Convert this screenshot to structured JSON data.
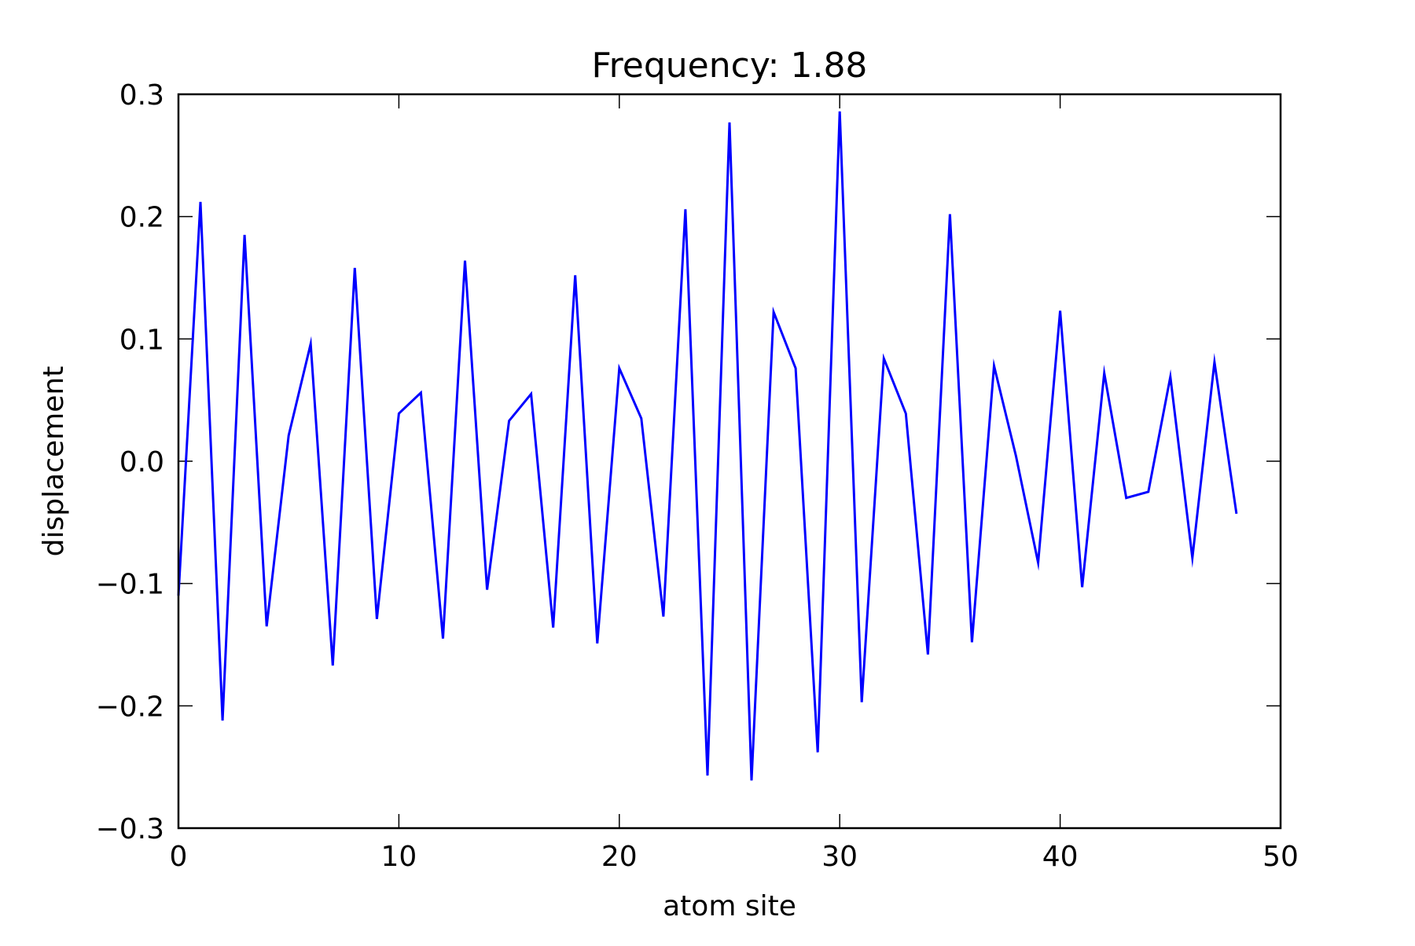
{
  "chart_data": {
    "type": "line",
    "title": "Frequency: 1.88",
    "xlabel": "atom site",
    "ylabel": "displacement",
    "xlim": [
      0,
      50
    ],
    "ylim": [
      -0.3,
      0.3
    ],
    "grid": false,
    "legend": "none",
    "x_ticks": [
      0,
      10,
      20,
      30,
      40,
      50
    ],
    "x_tick_labels": [
      "0",
      "10",
      "20",
      "30",
      "40",
      "50"
    ],
    "y_ticks": [
      -0.3,
      -0.2,
      -0.1,
      0.0,
      0.1,
      0.2,
      0.3
    ],
    "y_tick_labels": [
      "−0.3",
      "−0.2",
      "−0.1",
      "0.0",
      "0.1",
      "0.2",
      "0.3"
    ],
    "series": [
      {
        "color": "#0000ff",
        "x": [
          0,
          1,
          2,
          3,
          4,
          5,
          6,
          7,
          8,
          9,
          10,
          11,
          12,
          13,
          14,
          15,
          16,
          17,
          18,
          19,
          20,
          21,
          22,
          23,
          24,
          25,
          26,
          27,
          28,
          29,
          30,
          31,
          32,
          33,
          34,
          35,
          36,
          37,
          38,
          39,
          40,
          41,
          42,
          43,
          44,
          45,
          46,
          47,
          48
        ],
        "values": [
          -0.11,
          0.212,
          -0.212,
          0.185,
          -0.135,
          0.021,
          0.096,
          -0.167,
          0.158,
          -0.129,
          0.039,
          0.056,
          -0.145,
          0.164,
          -0.105,
          0.033,
          0.055,
          -0.136,
          0.152,
          -0.149,
          0.076,
          0.035,
          -0.127,
          0.206,
          -0.257,
          0.277,
          -0.261,
          0.122,
          0.076,
          -0.238,
          0.286,
          -0.197,
          0.084,
          0.039,
          -0.158,
          0.202,
          -0.148,
          0.078,
          0.004,
          -0.083,
          0.123,
          -0.103,
          0.072,
          -0.03,
          -0.025,
          0.069,
          -0.079,
          0.081,
          -0.043
        ]
      }
    ]
  }
}
